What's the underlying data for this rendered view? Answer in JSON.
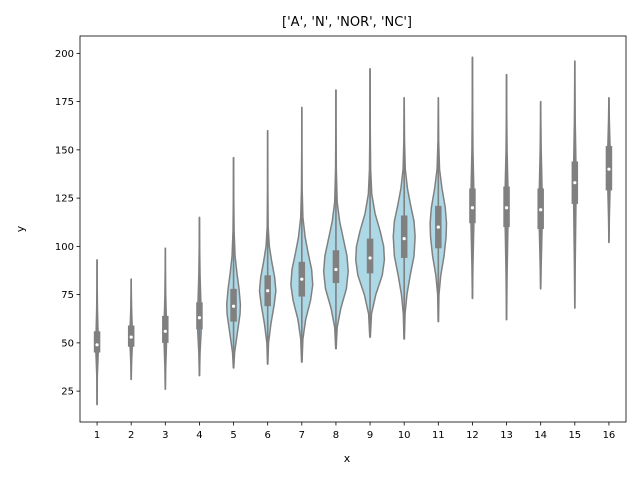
{
  "chart_data": {
    "type": "violin",
    "title": "['A', 'N', 'NOR', 'NC']",
    "xlabel": "x",
    "ylabel": "y",
    "ylim": [
      9,
      209
    ],
    "yticks": [
      25,
      50,
      75,
      100,
      125,
      150,
      175,
      200
    ],
    "grid": false,
    "colors": {
      "violin_fill": "#add8e6",
      "edge": "#808080",
      "median": "#ffffff"
    },
    "categories": [
      "1",
      "2",
      "3",
      "4",
      "5",
      "6",
      "7",
      "8",
      "9",
      "10",
      "11",
      "12",
      "13",
      "14",
      "15",
      "16"
    ],
    "violins": [
      {
        "x": "1",
        "min": 18,
        "q1": 45,
        "median": 49,
        "q3": 56,
        "max": 93,
        "halfwidth": 0.04,
        "density": [
          [
            18,
            0.05
          ],
          [
            33,
            0.2
          ],
          [
            44,
            0.8
          ],
          [
            49,
            1
          ],
          [
            56,
            0.7
          ],
          [
            67,
            0.3
          ],
          [
            80,
            0.1
          ],
          [
            93,
            0.05
          ]
        ]
      },
      {
        "x": "2",
        "min": 31,
        "q1": 48,
        "median": 53,
        "q3": 59,
        "max": 83,
        "halfwidth": 0.04,
        "density": [
          [
            31,
            0.05
          ],
          [
            40,
            0.3
          ],
          [
            48,
            0.8
          ],
          [
            53,
            1
          ],
          [
            59,
            0.7
          ],
          [
            68,
            0.3
          ],
          [
            76,
            0.1
          ],
          [
            83,
            0.05
          ]
        ]
      },
      {
        "x": "3",
        "min": 26,
        "q1": 50,
        "median": 56,
        "q3": 64,
        "max": 99,
        "halfwidth": 0.04,
        "density": [
          [
            26,
            0.05
          ],
          [
            37,
            0.3
          ],
          [
            48,
            0.8
          ],
          [
            56,
            1
          ],
          [
            64,
            0.7
          ],
          [
            75,
            0.3
          ],
          [
            88,
            0.1
          ],
          [
            99,
            0.05
          ]
        ]
      },
      {
        "x": "4",
        "min": 33,
        "q1": 57,
        "median": 63,
        "q3": 71,
        "max": 115,
        "halfwidth": 0.06,
        "density": [
          [
            33,
            0.05
          ],
          [
            45,
            0.3
          ],
          [
            55,
            0.8
          ],
          [
            63,
            1
          ],
          [
            71,
            0.7
          ],
          [
            85,
            0.3
          ],
          [
            100,
            0.1
          ],
          [
            115,
            0.03
          ]
        ]
      },
      {
        "x": "5",
        "min": 37,
        "q1": 61,
        "median": 69,
        "q3": 78,
        "max": 146,
        "halfwidth": 0.2,
        "density": [
          [
            37,
            0.03
          ],
          [
            45,
            0.15
          ],
          [
            55,
            0.55
          ],
          [
            65,
            0.95
          ],
          [
            70,
            1
          ],
          [
            78,
            0.8
          ],
          [
            86,
            0.5
          ],
          [
            95,
            0.22
          ],
          [
            108,
            0.08
          ],
          [
            125,
            0.03
          ],
          [
            146,
            0.01
          ]
        ]
      },
      {
        "x": "6",
        "min": 39,
        "q1": 69,
        "median": 77,
        "q3": 85,
        "max": 160,
        "halfwidth": 0.24,
        "density": [
          [
            39,
            0.02
          ],
          [
            50,
            0.1
          ],
          [
            60,
            0.4
          ],
          [
            70,
            0.8
          ],
          [
            77,
            1
          ],
          [
            84,
            0.85
          ],
          [
            92,
            0.5
          ],
          [
            100,
            0.2
          ],
          [
            110,
            0.06
          ],
          [
            130,
            0.02
          ],
          [
            160,
            0.01
          ]
        ]
      },
      {
        "x": "7",
        "min": 40,
        "q1": 74,
        "median": 83,
        "q3": 92,
        "max": 172,
        "halfwidth": 0.32,
        "density": [
          [
            40,
            0.02
          ],
          [
            52,
            0.1
          ],
          [
            62,
            0.35
          ],
          [
            72,
            0.8
          ],
          [
            80,
            1
          ],
          [
            88,
            0.9
          ],
          [
            96,
            0.6
          ],
          [
            105,
            0.3
          ],
          [
            115,
            0.1
          ],
          [
            130,
            0.03
          ],
          [
            150,
            0.01
          ],
          [
            172,
            0.005
          ]
        ]
      },
      {
        "x": "8",
        "min": 47,
        "q1": 81,
        "median": 88,
        "q3": 98,
        "max": 181,
        "halfwidth": 0.36,
        "density": [
          [
            47,
            0.02
          ],
          [
            58,
            0.1
          ],
          [
            68,
            0.4
          ],
          [
            78,
            0.85
          ],
          [
            87,
            1
          ],
          [
            95,
            0.9
          ],
          [
            104,
            0.6
          ],
          [
            113,
            0.3
          ],
          [
            123,
            0.1
          ],
          [
            140,
            0.03
          ],
          [
            160,
            0.01
          ],
          [
            181,
            0.005
          ]
        ]
      },
      {
        "x": "9",
        "min": 53,
        "q1": 86,
        "median": 94,
        "q3": 104,
        "max": 192,
        "halfwidth": 0.42,
        "density": [
          [
            53,
            0.02
          ],
          [
            65,
            0.1
          ],
          [
            75,
            0.4
          ],
          [
            85,
            0.85
          ],
          [
            93,
            1
          ],
          [
            100,
            0.95
          ],
          [
            108,
            0.7
          ],
          [
            117,
            0.35
          ],
          [
            127,
            0.12
          ],
          [
            140,
            0.04
          ],
          [
            160,
            0.015
          ],
          [
            192,
            0.005
          ]
        ]
      },
      {
        "x": "10",
        "min": 52,
        "q1": 94,
        "median": 104,
        "q3": 116,
        "max": 177,
        "halfwidth": 0.32,
        "density": [
          [
            52,
            0.02
          ],
          [
            65,
            0.08
          ],
          [
            75,
            0.25
          ],
          [
            85,
            0.55
          ],
          [
            95,
            0.9
          ],
          [
            105,
            1
          ],
          [
            113,
            0.9
          ],
          [
            121,
            0.6
          ],
          [
            130,
            0.3
          ],
          [
            140,
            0.1
          ],
          [
            155,
            0.03
          ],
          [
            177,
            0.005
          ]
        ]
      },
      {
        "x": "11",
        "min": 61,
        "q1": 99,
        "median": 110,
        "q3": 121,
        "max": 177,
        "halfwidth": 0.24,
        "density": [
          [
            61,
            0.02
          ],
          [
            75,
            0.08
          ],
          [
            85,
            0.3
          ],
          [
            95,
            0.7
          ],
          [
            105,
            0.95
          ],
          [
            112,
            1
          ],
          [
            120,
            0.85
          ],
          [
            130,
            0.45
          ],
          [
            140,
            0.15
          ],
          [
            155,
            0.04
          ],
          [
            177,
            0.005
          ]
        ]
      },
      {
        "x": "12",
        "min": 73,
        "q1": 112,
        "median": 120,
        "q3": 130,
        "max": 198,
        "halfwidth": 0.05,
        "density": [
          [
            73,
            0.05
          ],
          [
            90,
            0.3
          ],
          [
            110,
            0.8
          ],
          [
            120,
            1
          ],
          [
            130,
            0.8
          ],
          [
            150,
            0.3
          ],
          [
            175,
            0.1
          ],
          [
            198,
            0.05
          ]
        ]
      },
      {
        "x": "13",
        "min": 62,
        "q1": 110,
        "median": 120,
        "q3": 131,
        "max": 189,
        "halfwidth": 0.05,
        "density": [
          [
            62,
            0.05
          ],
          [
            85,
            0.3
          ],
          [
            110,
            0.8
          ],
          [
            120,
            1
          ],
          [
            131,
            0.8
          ],
          [
            150,
            0.3
          ],
          [
            170,
            0.1
          ],
          [
            189,
            0.05
          ]
        ]
      },
      {
        "x": "14",
        "min": 78,
        "q1": 109,
        "median": 119,
        "q3": 130,
        "max": 175,
        "halfwidth": 0.05,
        "density": [
          [
            78,
            0.05
          ],
          [
            90,
            0.3
          ],
          [
            109,
            0.8
          ],
          [
            119,
            1
          ],
          [
            130,
            0.8
          ],
          [
            150,
            0.3
          ],
          [
            165,
            0.1
          ],
          [
            175,
            0.05
          ]
        ]
      },
      {
        "x": "15",
        "min": 68,
        "q1": 122,
        "median": 133,
        "q3": 144,
        "max": 196,
        "halfwidth": 0.04,
        "density": [
          [
            68,
            0.05
          ],
          [
            90,
            0.3
          ],
          [
            120,
            0.8
          ],
          [
            133,
            1
          ],
          [
            144,
            0.8
          ],
          [
            165,
            0.3
          ],
          [
            185,
            0.1
          ],
          [
            196,
            0.05
          ]
        ]
      },
      {
        "x": "16",
        "min": 102,
        "q1": 129,
        "median": 140,
        "q3": 152,
        "max": 177,
        "halfwidth": 0.04,
        "density": [
          [
            102,
            0.05
          ],
          [
            115,
            0.3
          ],
          [
            129,
            0.8
          ],
          [
            140,
            1
          ],
          [
            152,
            0.8
          ],
          [
            165,
            0.3
          ],
          [
            177,
            0.05
          ]
        ]
      }
    ]
  }
}
